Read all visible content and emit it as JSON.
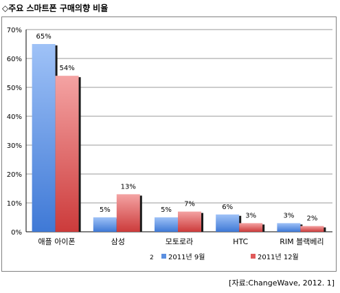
{
  "title": "◇주요 스마트폰 구매의향 비율",
  "source": "[자료:ChangeWave, 2012. 1]",
  "legend_stray": "2",
  "chart_data": {
    "type": "bar",
    "categories": [
      "애플 아이폰",
      "삼성",
      "모토로라",
      "HTC",
      "RIM 블랙베리"
    ],
    "series": [
      {
        "name": "2011년 9월",
        "values": [
          65,
          5,
          5,
          6,
          3
        ],
        "labels": [
          "65%",
          "5%",
          "5%",
          "6%",
          "3%"
        ],
        "color": "#5b8fe0"
      },
      {
        "name": "2011년 12월",
        "values": [
          54,
          13,
          7,
          3,
          2
        ],
        "labels": [
          "54%",
          "13%",
          "7%",
          "3%",
          "2%"
        ],
        "color": "#e05a5a"
      }
    ],
    "y_ticks": [
      "0%",
      "10%",
      "20%",
      "30%",
      "40%",
      "50%",
      "60%",
      "70%"
    ],
    "ylim": [
      0,
      70
    ],
    "grid": true,
    "legend_position": "bottom"
  }
}
